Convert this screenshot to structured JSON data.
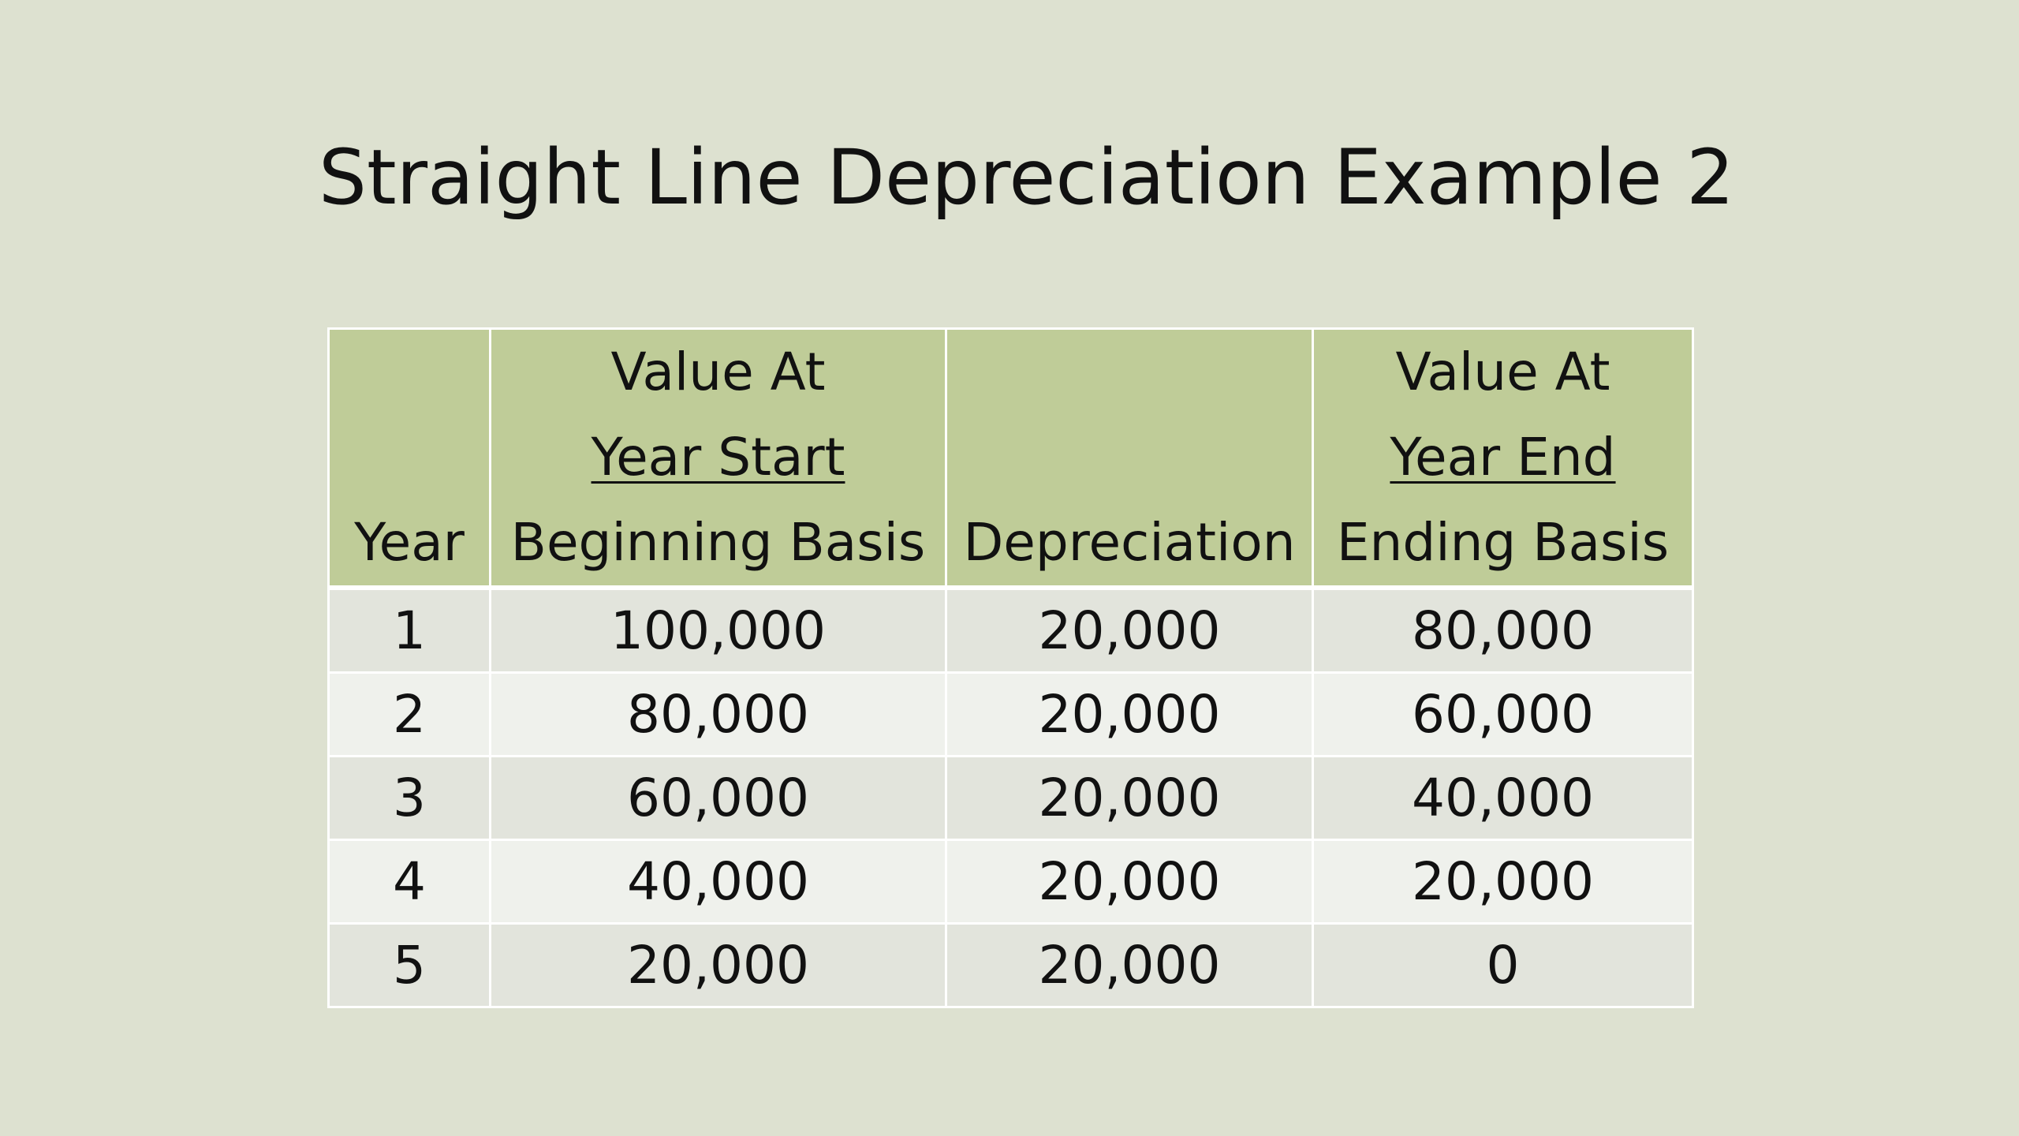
{
  "slide": {
    "title": "Straight Line Depreciation Example 2"
  },
  "table": {
    "headers": {
      "year": [
        "Year"
      ],
      "beginning": [
        "Value At",
        "Year Start",
        "Beginning Basis"
      ],
      "depreciation": [
        "Depreciation"
      ],
      "ending": [
        "Value At",
        "Year End",
        "Ending Basis"
      ]
    },
    "rows": [
      {
        "year": "1",
        "beginning": "100,000",
        "depreciation": "20,000",
        "ending": "80,000"
      },
      {
        "year": "2",
        "beginning": "80,000",
        "depreciation": "20,000",
        "ending": "60,000"
      },
      {
        "year": "3",
        "beginning": "60,000",
        "depreciation": "20,000",
        "ending": "40,000"
      },
      {
        "year": "4",
        "beginning": "40,000",
        "depreciation": "20,000",
        "ending": "20,000"
      },
      {
        "year": "5",
        "beginning": "20,000",
        "depreciation": "20,000",
        "ending": "0"
      }
    ]
  },
  "colors": {
    "background": "#dde1d0",
    "header": "#bfcc98",
    "row_odd": "#e2e4dc",
    "row_even": "#eff1ec",
    "border": "#ffffff"
  }
}
